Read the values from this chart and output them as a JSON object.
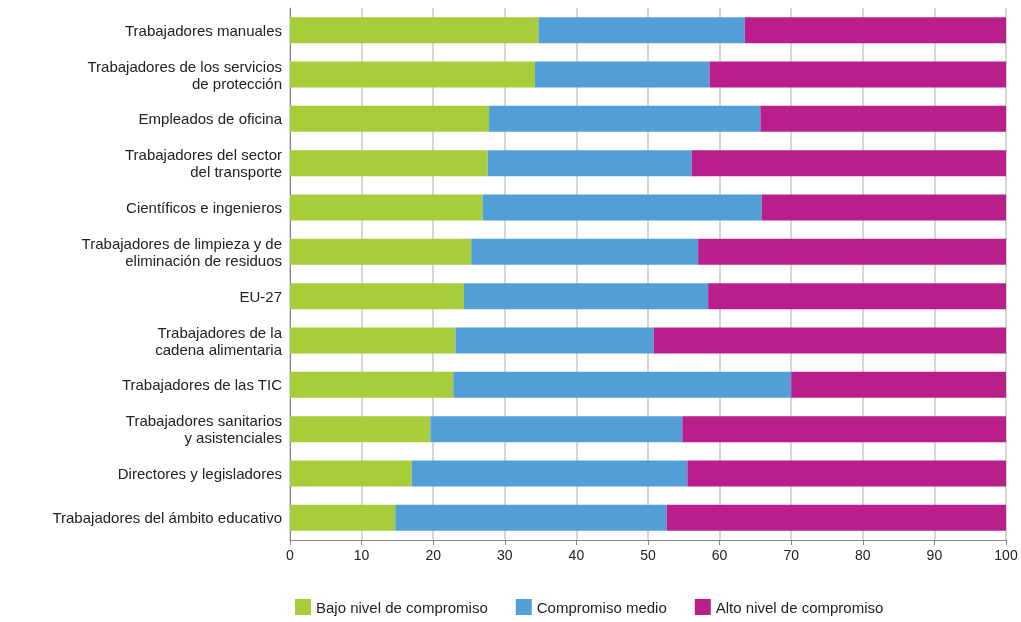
{
  "chart_data": {
    "type": "bar",
    "orientation": "horizontal",
    "stacked": true,
    "categories": [
      "Trabajadores manuales",
      "Trabajadores de los servicios\nde protección",
      "Empleados de oficina",
      "Trabajadores del sector\ndel transporte",
      "Científicos e ingenieros",
      "Trabajadores de limpieza y de\neliminación de residuos",
      "EU-27",
      "Trabajadores de la\ncadena alimentaria",
      "Trabajadores de las TIC",
      "Trabajadores sanitarios\ny asistenciales",
      "Directores y legisladores",
      "Trabajadores del ámbito educativo"
    ],
    "series": [
      {
        "name": "Bajo nivel de compromiso",
        "color": "#a8cd3a",
        "values": [
          34.7,
          34.2,
          27.8,
          27.6,
          26.9,
          25.3,
          24.3,
          23.1,
          22.8,
          19.6,
          17.0,
          14.7
        ]
      },
      {
        "name": "Compromiso medio",
        "color": "#519fd6",
        "values": [
          28.8,
          24.4,
          37.9,
          28.5,
          39.0,
          31.7,
          34.1,
          27.7,
          47.2,
          35.2,
          38.5,
          37.9
        ]
      },
      {
        "name": "Alto nivel de compromiso",
        "color": "#b81f8a",
        "values": [
          36.5,
          41.4,
          34.3,
          43.9,
          34.1,
          43.0,
          41.6,
          49.2,
          30.0,
          45.2,
          44.5,
          47.4
        ]
      }
    ],
    "xlim": [
      0,
      100
    ],
    "xticks": [
      0,
      10,
      20,
      30,
      40,
      50,
      60,
      70,
      80,
      90,
      100
    ],
    "grid": "x",
    "legend": "bottom"
  }
}
